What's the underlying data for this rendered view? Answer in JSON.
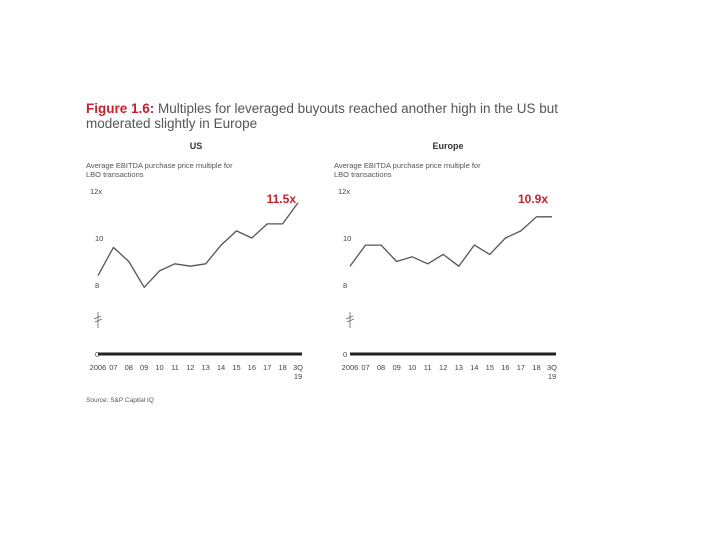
{
  "figure": {
    "title_lead": "Figure 1.6:",
    "title_rest": " Multiples for leveraged buyouts reached another high in the US but moderated slightly in Europe",
    "source": "Source: S&P Capital IQ"
  },
  "chart_data": [
    {
      "type": "line",
      "title": "US",
      "ylabel": [
        "Average EBITDA purchase price multiple for",
        "LBO transactions"
      ],
      "y_unit_tick": "12x",
      "y_ticks": [
        "0",
        "8",
        "10"
      ],
      "axis_break": true,
      "ylim": [
        6.5,
        12
      ],
      "x": [
        "2006",
        "07",
        "08",
        "09",
        "10",
        "11",
        "12",
        "13",
        "14",
        "15",
        "16",
        "17",
        "18",
        "3Q 19"
      ],
      "values": [
        8.4,
        9.6,
        9.0,
        7.9,
        8.6,
        8.9,
        8.8,
        8.9,
        9.7,
        10.3,
        10.0,
        10.6,
        10.6,
        11.5
      ],
      "annotation": "11.5x",
      "color": "#555555"
    },
    {
      "type": "line",
      "title": "Europe",
      "ylabel": [
        "Average EBITDA purchase price multiple for",
        "LBO transactions"
      ],
      "y_unit_tick": "12x",
      "y_ticks": [
        "0",
        "8",
        "10"
      ],
      "axis_break": true,
      "ylim": [
        6.5,
        12
      ],
      "x": [
        "2006",
        "07",
        "08",
        "09",
        "10",
        "11",
        "12",
        "13",
        "14",
        "15",
        "16",
        "17",
        "18",
        "3Q 19"
      ],
      "values": [
        8.8,
        9.7,
        9.7,
        9.0,
        9.2,
        8.9,
        9.3,
        8.8,
        9.7,
        9.3,
        10.0,
        10.3,
        10.9,
        10.9
      ],
      "annotation": "10.9x",
      "color": "#555555"
    }
  ]
}
